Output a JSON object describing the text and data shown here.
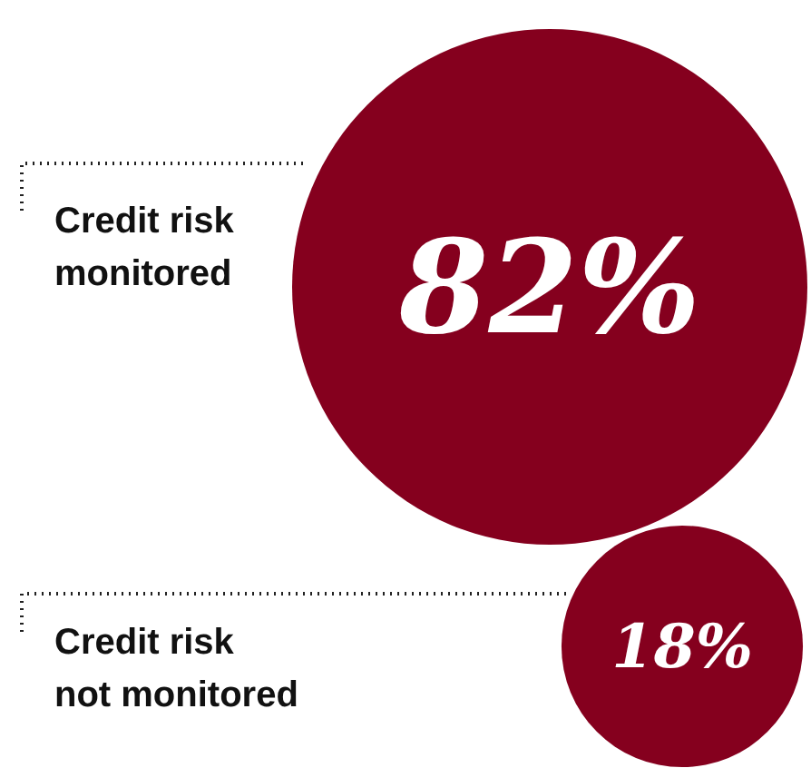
{
  "chart_data": {
    "type": "other",
    "categories": [
      "Credit risk monitored",
      "Credit risk not monitored"
    ],
    "values": [
      82,
      18
    ],
    "value_labels": [
      "82%",
      "18%"
    ],
    "colors": [
      "#85001e",
      "#85001e"
    ]
  }
}
